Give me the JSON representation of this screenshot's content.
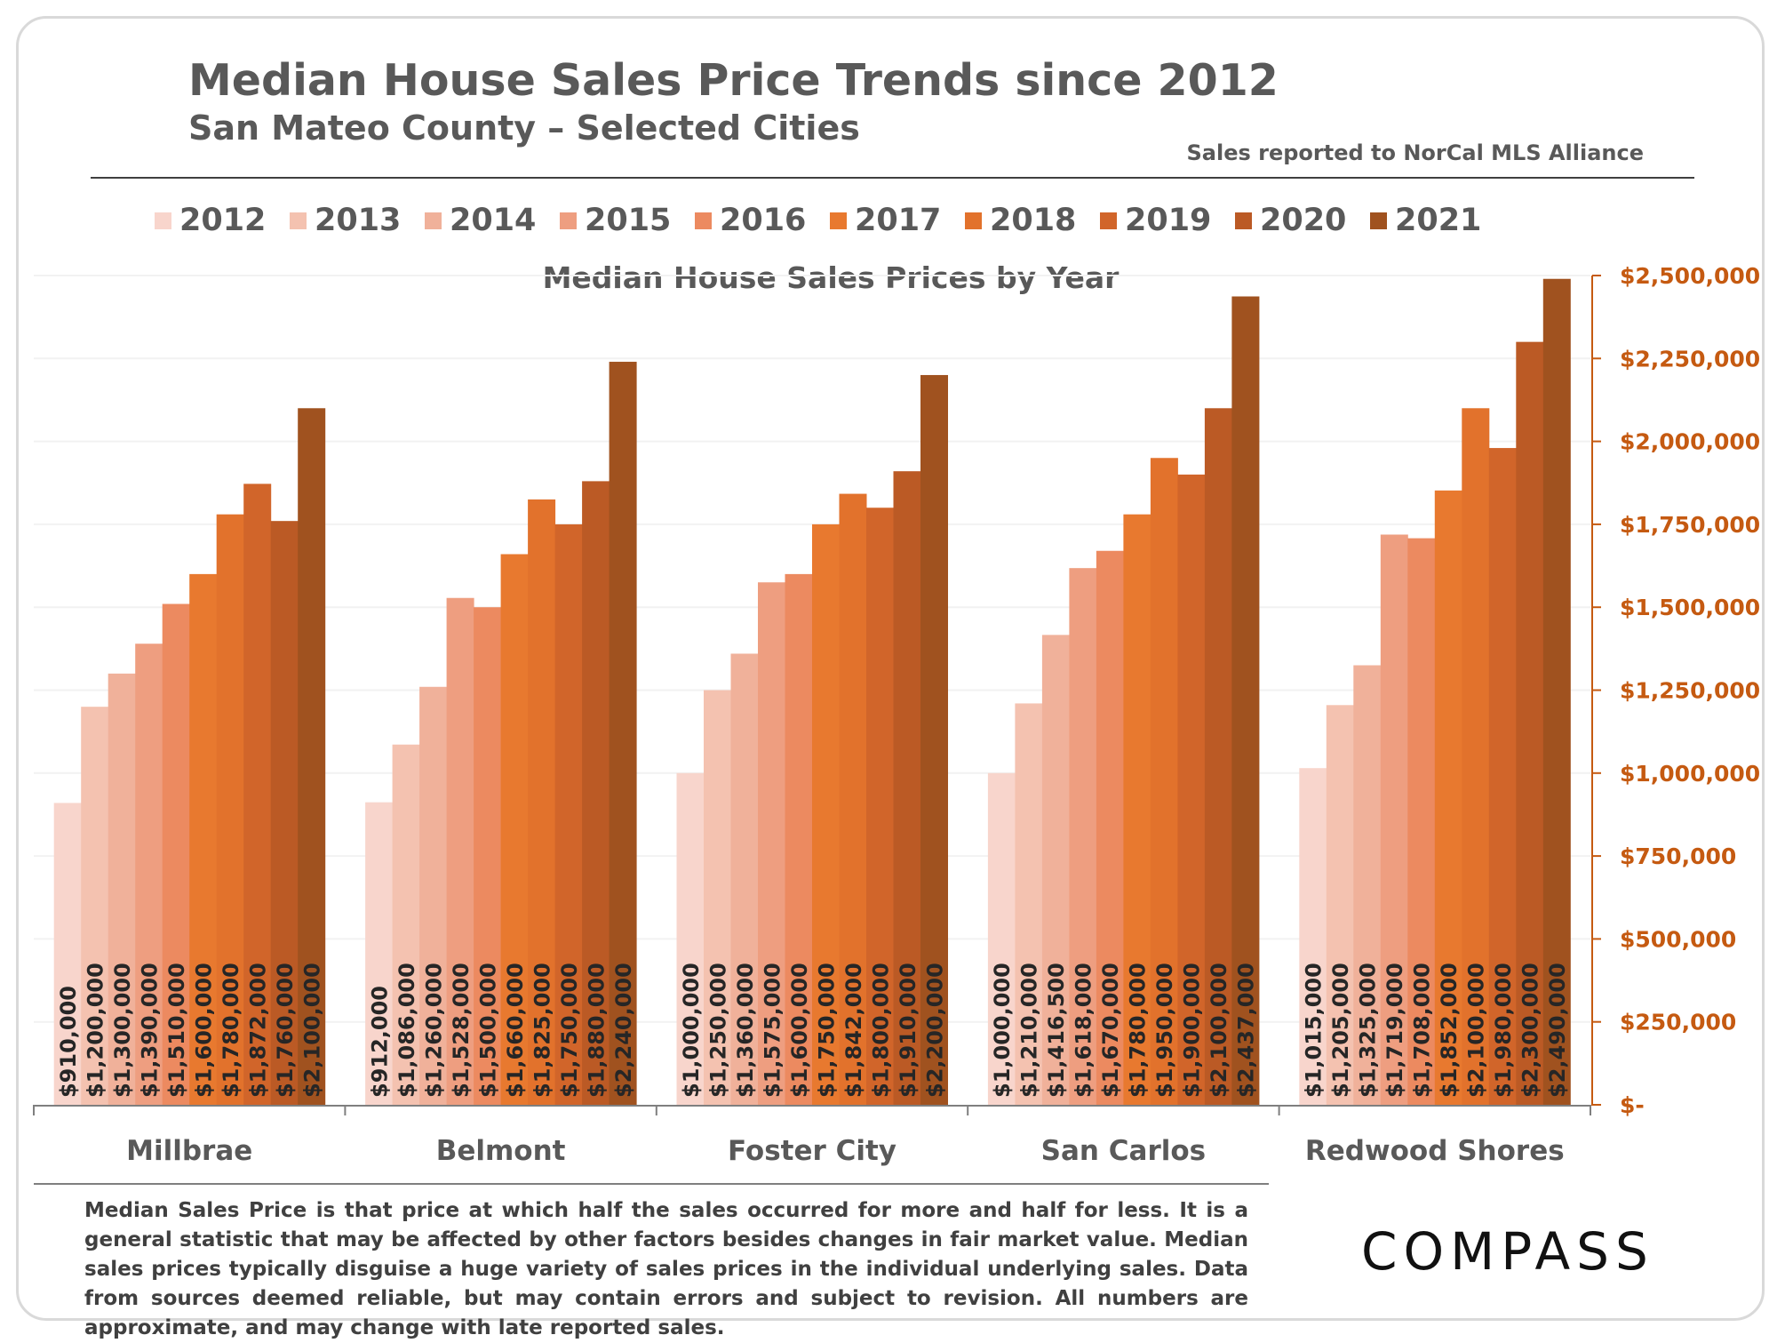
{
  "header": {
    "title": "Median House Sales Price Trends since 2012",
    "subtitle": "San Mateo County – Selected Cities",
    "source": "Sales reported to NorCal MLS Alliance"
  },
  "footnote": "Median Sales Price is that price at which half the sales occurred for more and half for less. It is a general statistic that may be affected by other factors besides changes in fair market value. Median sales prices typically disguise a huge variety of sales prices in the individual underlying sales. Data from sources deemed reliable, but may contain errors and subject to revision.  All numbers are approximate, and may change with late reported sales.",
  "logo": "COMPASS",
  "colors": {
    "axis": "#c55a11",
    "years": [
      "#f8d5cc",
      "#f4c2b0",
      "#f0b19a",
      "#ee9e80",
      "#ec8a60",
      "#e8792f",
      "#e2722c",
      "#d1652a",
      "#bb5a25",
      "#a0521f"
    ]
  },
  "chart_data": {
    "type": "bar",
    "title": "Median House Sales Prices by Year",
    "categories": [
      "Millbrae",
      "Belmont",
      "Foster City",
      "San Carlos",
      "Redwood Shores"
    ],
    "ylim": [
      0,
      2500000
    ],
    "yticks": [
      0,
      250000,
      500000,
      750000,
      1000000,
      1250000,
      1500000,
      1750000,
      2000000,
      2250000,
      2500000
    ],
    "ytick_labels": [
      "$-",
      "$250,000",
      "$500,000",
      "$750,000",
      "$1,000,000",
      "$1,250,000",
      "$1,500,000",
      "$1,750,000",
      "$2,000,000",
      "$2,250,000",
      "$2,500,000"
    ],
    "legend": "top",
    "series": [
      {
        "name": "2012",
        "values": [
          910000,
          912000,
          1000000,
          1000000,
          1015000
        ],
        "labels": [
          "$910,000",
          "$912,000",
          "$1,000,000",
          "$1,000,000",
          "$1,015,000"
        ]
      },
      {
        "name": "2013",
        "values": [
          1200000,
          1086000,
          1250000,
          1210000,
          1205000
        ],
        "labels": [
          "$1,200,000",
          "$1,086,000",
          "$1,250,000",
          "$1,210,000",
          "$1,205,000"
        ]
      },
      {
        "name": "2014",
        "values": [
          1300000,
          1260000,
          1360000,
          1416500,
          1325000
        ],
        "labels": [
          "$1,300,000",
          "$1,260,000",
          "$1,360,000",
          "$1,416,500",
          "$1,325,000"
        ]
      },
      {
        "name": "2015",
        "values": [
          1390000,
          1528000,
          1575000,
          1618000,
          1719000
        ],
        "labels": [
          "$1,390,000",
          "$1,528,000",
          "$1,575,000",
          "$1,618,000",
          "$1,719,000"
        ]
      },
      {
        "name": "2016",
        "values": [
          1510000,
          1500000,
          1600000,
          1670000,
          1708000
        ],
        "labels": [
          "$1,510,000",
          "$1,500,000",
          "$1,600,000",
          "$1,670,000",
          "$1,708,000"
        ]
      },
      {
        "name": "2017",
        "values": [
          1600000,
          1660000,
          1750000,
          1780000,
          1852000
        ],
        "labels": [
          "$1,600,000",
          "$1,660,000",
          "$1,750,000",
          "$1,780,000",
          "$1,852,000"
        ]
      },
      {
        "name": "2018",
        "values": [
          1780000,
          1825000,
          1842000,
          1950000,
          2100000
        ],
        "labels": [
          "$1,780,000",
          "$1,825,000",
          "$1,842,000",
          "$1,950,000",
          "$2,100,000"
        ]
      },
      {
        "name": "2019",
        "values": [
          1872000,
          1750000,
          1800000,
          1900000,
          1980000
        ],
        "labels": [
          "$1,872,000",
          "$1,750,000",
          "$1,800,000",
          "$1,900,000",
          "$1,980,000"
        ]
      },
      {
        "name": "2020",
        "values": [
          1760000,
          1880000,
          1910000,
          2100000,
          2300000
        ],
        "labels": [
          "$1,760,000",
          "$1,880,000",
          "$1,910,000",
          "$2,100,000",
          "$2,300,000"
        ]
      },
      {
        "name": "2021",
        "values": [
          2100000,
          2240000,
          2200000,
          2437000,
          2490000
        ],
        "labels": [
          "$2,100,000",
          "$2,240,000",
          "$2,200,000",
          "$2,437,000",
          "$2,490,000"
        ]
      }
    ]
  }
}
